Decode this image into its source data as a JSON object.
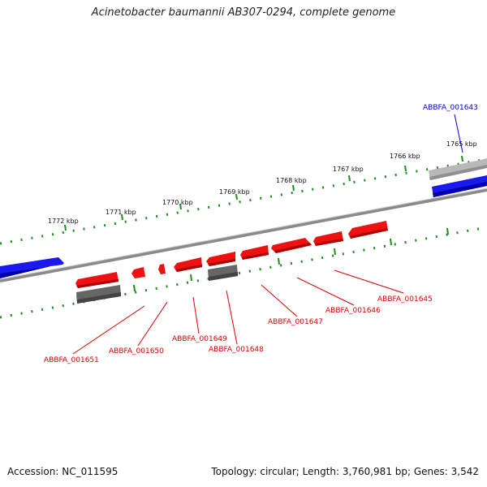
{
  "title": "Acinetobacter baumannii AB307-0294, complete genome",
  "footer": {
    "accession": "Accession: NC_011595",
    "topology": "Topology: circular; Length: 3,760,981 bp; Genes: 3,542"
  },
  "colors": {
    "forward_gene": "#0000ee",
    "reverse_gene": "#ee0000",
    "backbone": "#888888",
    "ticks": "#228b22",
    "gray_feature": "#666666",
    "light_feature": "#bbbbbb"
  },
  "ticks": [
    {
      "label": "1765 kbp"
    },
    {
      "label": "1766 kbp"
    },
    {
      "label": "1767 kbp"
    },
    {
      "label": "1768 kbp"
    },
    {
      "label": "1769 kbp"
    },
    {
      "label": "1770 kbp"
    },
    {
      "label": "1771 kbp"
    },
    {
      "label": "1772 kbp"
    }
  ],
  "gene_labels": [
    {
      "id": "ABBFA_001643",
      "strand": "forward"
    },
    {
      "id": "ABBFA_001645",
      "strand": "reverse"
    },
    {
      "id": "ABBFA_001646",
      "strand": "reverse"
    },
    {
      "id": "ABBFA_001647",
      "strand": "reverse"
    },
    {
      "id": "ABBFA_001648",
      "strand": "reverse"
    },
    {
      "id": "ABBFA_001649",
      "strand": "reverse"
    },
    {
      "id": "ABBFA_001650",
      "strand": "reverse"
    },
    {
      "id": "ABBFA_001651",
      "strand": "reverse"
    }
  ]
}
